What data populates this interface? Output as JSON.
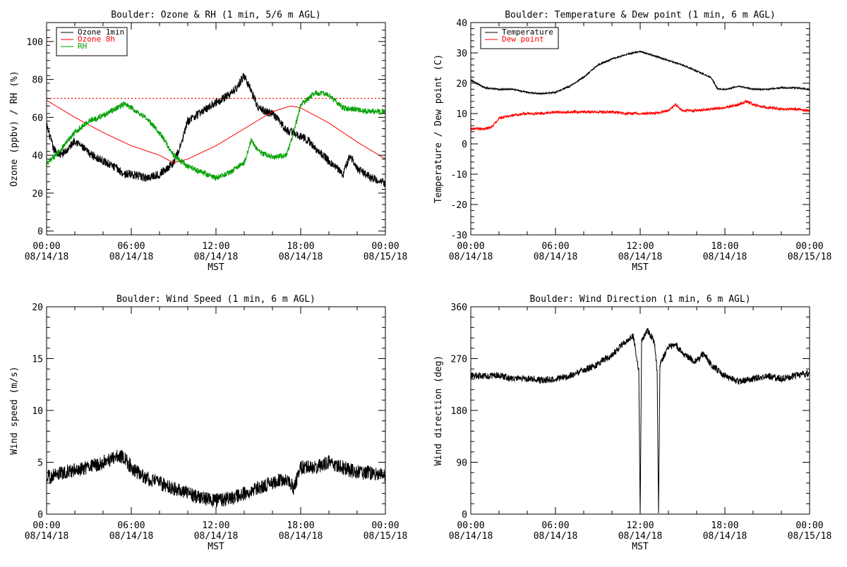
{
  "chart_data": [
    {
      "type": "line",
      "title": "Boulder: Ozone & RH (1 min, 5/6 m AGL)",
      "xlabel": "MST",
      "ylabel": "Ozone (ppbv) / RH (%)",
      "xlim": [
        0,
        24
      ],
      "ylim": [
        -2,
        110
      ],
      "yticks": [
        0,
        20,
        40,
        60,
        80,
        100
      ],
      "xticks": [
        {
          "v": 0,
          "time": "00:00",
          "date": "08/14/18"
        },
        {
          "v": 6,
          "time": "06:00",
          "date": "08/14/18"
        },
        {
          "v": 12,
          "time": "12:00",
          "date": "08/14/18"
        },
        {
          "v": 18,
          "time": "18:00",
          "date": "08/14/18"
        },
        {
          "v": 24,
          "time": "00:00",
          "date": "08/15/18"
        }
      ],
      "legend": {
        "position": "top-left",
        "entries": [
          "Ozone 1min",
          "Ozone 8h",
          "RH"
        ]
      },
      "reference_line": {
        "y": 70,
        "color": "#ff0000",
        "style": "dotted"
      },
      "series": [
        {
          "name": "Ozone 1min",
          "color": "#000000",
          "noise": 2.2,
          "x": [
            0,
            0.5,
            1,
            1.5,
            2,
            3,
            4,
            5,
            5.5,
            6,
            6.5,
            7,
            8,
            9,
            9.5,
            10,
            11,
            12,
            13,
            13.5,
            14,
            14.5,
            15,
            15.5,
            16,
            16.5,
            17,
            17.5,
            18,
            18.5,
            19,
            20,
            21,
            21.5,
            22,
            23,
            24
          ],
          "y": [
            56,
            43,
            40,
            43,
            48,
            41,
            37,
            33,
            30,
            30,
            29,
            28,
            30,
            36,
            45,
            58,
            63,
            68,
            72,
            76,
            82,
            74,
            65,
            63,
            62,
            58,
            53,
            52,
            50,
            48,
            44,
            37,
            30,
            40,
            33,
            28,
            25
          ]
        },
        {
          "name": "Ozone 8h",
          "color": "#ff0000",
          "noise": 0,
          "x": [
            0,
            2,
            4,
            6,
            8,
            9,
            10,
            12,
            14,
            16,
            17.3,
            18,
            20,
            22,
            24
          ],
          "y": [
            69,
            60,
            52,
            45,
            40,
            36,
            38,
            45,
            54,
            63,
            66,
            65,
            57,
            47,
            38
          ]
        },
        {
          "name": "RH",
          "color": "#00a000",
          "noise": 1.5,
          "x": [
            0,
            1,
            2,
            3,
            4,
            5,
            5.5,
            6,
            7,
            8,
            9,
            10,
            11,
            12,
            13,
            14,
            14.5,
            15,
            16,
            17,
            17.5,
            18,
            19,
            20,
            21,
            22,
            23,
            24
          ],
          "y": [
            35,
            43,
            52,
            58,
            61,
            65,
            67,
            65,
            60,
            52,
            40,
            34,
            31,
            28,
            31,
            36,
            48,
            42,
            39,
            40,
            52,
            66,
            73,
            72,
            65,
            64,
            63,
            63
          ]
        }
      ]
    },
    {
      "type": "line",
      "title": "Boulder: Temperature & Dew point (1 min, 6 m AGL)",
      "xlabel": "MST",
      "ylabel": "Temperature / Dew point (C)",
      "xlim": [
        0,
        24
      ],
      "ylim": [
        -30,
        40
      ],
      "yticks": [
        -30,
        -20,
        -10,
        0,
        10,
        20,
        30,
        40
      ],
      "xticks": [
        {
          "v": 0,
          "time": "00:00",
          "date": "08/14/18"
        },
        {
          "v": 6,
          "time": "06:00",
          "date": "08/14/18"
        },
        {
          "v": 12,
          "time": "12:00",
          "date": "08/14/18"
        },
        {
          "v": 18,
          "time": "18:00",
          "date": "08/14/18"
        },
        {
          "v": 24,
          "time": "00:00",
          "date": "08/15/18"
        }
      ],
      "legend": {
        "position": "top-left",
        "entries": [
          "Temperature",
          "Dew point"
        ]
      },
      "series": [
        {
          "name": "Temperature",
          "color": "#000000",
          "noise": 0.25,
          "x": [
            0,
            1,
            2,
            3,
            4,
            5,
            6,
            7,
            8,
            9,
            10,
            11,
            12,
            13,
            14,
            15,
            16,
            17,
            17.5,
            18,
            19,
            20,
            21,
            22,
            23,
            24
          ],
          "y": [
            21,
            18.5,
            18,
            18,
            17,
            16.5,
            17,
            19,
            22,
            26,
            28,
            29.5,
            30.5,
            29,
            27.5,
            26,
            24,
            22,
            18,
            18,
            19,
            18,
            18,
            18.5,
            18.5,
            18
          ]
        },
        {
          "name": "Dew point",
          "color": "#ff0000",
          "noise": 0.45,
          "x": [
            0,
            1,
            1.5,
            2,
            3,
            4,
            5,
            6,
            7,
            8,
            9,
            10,
            11,
            12,
            13,
            14,
            14.5,
            15,
            16,
            17,
            18,
            19,
            19.5,
            20,
            21,
            22,
            23,
            24
          ],
          "y": [
            5,
            5,
            5.5,
            8.5,
            9.5,
            10,
            10,
            10.5,
            10.5,
            10.5,
            10.5,
            10.5,
            10,
            10,
            10,
            11,
            13,
            11,
            11,
            11.5,
            12,
            13,
            14,
            13,
            12,
            11.5,
            11.5,
            11
          ]
        }
      ]
    },
    {
      "type": "line",
      "title": "Boulder: Wind Speed (1 min, 6 m AGL)",
      "xlabel": "MST",
      "ylabel": "Wind speed (m/s)",
      "xlim": [
        0,
        24
      ],
      "ylim": [
        0,
        20
      ],
      "yticks": [
        0,
        5,
        10,
        15,
        20
      ],
      "xticks": [
        {
          "v": 0,
          "time": "00:00",
          "date": "08/14/18"
        },
        {
          "v": 6,
          "time": "06:00",
          "date": "08/14/18"
        },
        {
          "v": 12,
          "time": "12:00",
          "date": "08/14/18"
        },
        {
          "v": 18,
          "time": "18:00",
          "date": "08/14/18"
        },
        {
          "v": 24,
          "time": "00:00",
          "date": "08/15/18"
        }
      ],
      "series": [
        {
          "name": "Wind speed",
          "color": "#000000",
          "noise": 0.7,
          "x": [
            0,
            1,
            2,
            3,
            4,
            5,
            5.5,
            6,
            7,
            8,
            9,
            10,
            11,
            12,
            13,
            14,
            15,
            16,
            17,
            17.5,
            18,
            19,
            20,
            21,
            22,
            23,
            24
          ],
          "y": [
            3.5,
            4,
            4.2,
            4.5,
            5,
            5.5,
            5.5,
            4.5,
            3.5,
            3,
            2.5,
            2,
            1.5,
            1.3,
            1.5,
            2,
            2.5,
            3,
            3.5,
            2.5,
            4.5,
            4.5,
            5,
            4.5,
            4,
            4,
            3.8
          ]
        }
      ]
    },
    {
      "type": "line",
      "title": "Boulder: Wind Direction (1 min, 6 m AGL)",
      "xlabel": "MST",
      "ylabel": "Wind direction (deg)",
      "xlim": [
        0,
        24
      ],
      "ylim": [
        0,
        360
      ],
      "yticks": [
        0,
        90,
        180,
        270,
        360
      ],
      "xticks": [
        {
          "v": 0,
          "time": "00:00",
          "date": "08/14/18"
        },
        {
          "v": 6,
          "time": "06:00",
          "date": "08/14/18"
        },
        {
          "v": 12,
          "time": "12:00",
          "date": "08/14/18"
        },
        {
          "v": 18,
          "time": "18:00",
          "date": "08/14/18"
        },
        {
          "v": 24,
          "time": "00:00",
          "date": "08/15/18"
        }
      ],
      "series": [
        {
          "name": "Wind direction",
          "color": "#000000",
          "noise": 6,
          "x": [
            0,
            1,
            2,
            3,
            4,
            5,
            6,
            7,
            8,
            9,
            9.5,
            10,
            10.5,
            11,
            11.5,
            11.9,
            12,
            12.1,
            12.5,
            13,
            13.2,
            13.3,
            13.4,
            13.8,
            14,
            14.5,
            15,
            15.5,
            16,
            16.5,
            17,
            17.5,
            18,
            18.5,
            19,
            20,
            21,
            22,
            23,
            24
          ],
          "y": [
            240,
            240,
            240,
            235,
            235,
            232,
            235,
            240,
            250,
            260,
            270,
            275,
            290,
            300,
            310,
            250,
            0,
            300,
            320,
            300,
            250,
            0,
            260,
            280,
            290,
            295,
            280,
            270,
            265,
            280,
            260,
            250,
            240,
            235,
            230,
            235,
            240,
            235,
            240,
            245
          ]
        }
      ]
    }
  ]
}
